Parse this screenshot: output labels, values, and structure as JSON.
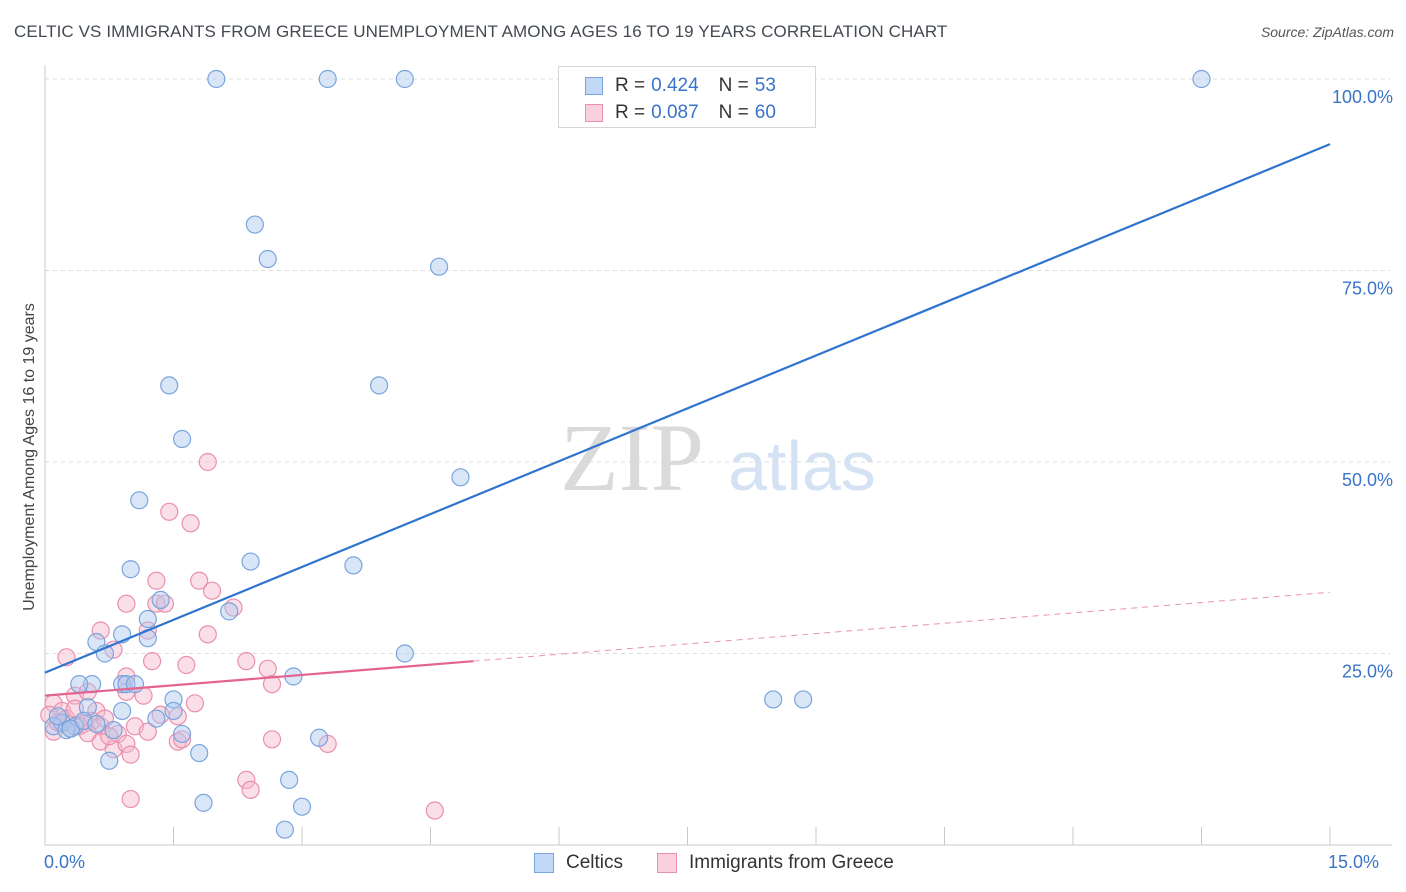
{
  "title": "CELTIC VS IMMIGRANTS FROM GREECE UNEMPLOYMENT AMONG AGES 16 TO 19 YEARS CORRELATION CHART",
  "source": "Source: ZipAtlas.com",
  "watermark": {
    "zip": "ZIP",
    "atlas": "atlas"
  },
  "legend": {
    "r_label": "R =",
    "n_label": "N =",
    "series": [
      {
        "name": "Celtics",
        "r": "0.424",
        "n": "53"
      },
      {
        "name": "Immigrants from Greece",
        "r": "0.087",
        "n": "60"
      }
    ]
  },
  "colors": {
    "celtic_fill": "#aac8f0",
    "celtic_stroke": "#7aa4dc",
    "celtic_line": "#2f74cf",
    "greece_fill": "#f7b8cc",
    "greece_stroke": "#ea8fae",
    "greece_line": "#e2648f",
    "tick_text": "#3a74c9",
    "grid": "#dcdcdc"
  },
  "chart_data": {
    "type": "scatter",
    "title": "CELTIC VS IMMIGRANTS FROM GREECE UNEMPLOYMENT AMONG AGES 16 TO 19 YEARS CORRELATION CHART",
    "xlabel": "",
    "ylabel": "Unemployment Among Ages 16 to 19 years",
    "xlim": [
      0,
      15
    ],
    "ylim": [
      0,
      105
    ],
    "x_tick_labels": [
      "0.0%",
      "15.0%"
    ],
    "y_ticks": [
      25,
      50,
      75,
      100
    ],
    "y_tick_labels": [
      "25.0%",
      "50.0%",
      "75.0%",
      "100.0%"
    ],
    "grid": true,
    "series": [
      {
        "name": "Celtics",
        "r": 0.424,
        "n": 53,
        "trend": {
          "x": [
            0,
            15
          ],
          "y": [
            22.5,
            91.5
          ],
          "style": "solid"
        },
        "points": [
          [
            2.0,
            100
          ],
          [
            3.3,
            100
          ],
          [
            4.2,
            100
          ],
          [
            13.5,
            100
          ],
          [
            2.45,
            81
          ],
          [
            2.6,
            76.5
          ],
          [
            4.6,
            75.5
          ],
          [
            1.45,
            60
          ],
          [
            3.9,
            60
          ],
          [
            1.6,
            53
          ],
          [
            4.85,
            48
          ],
          [
            1.1,
            45
          ],
          [
            2.4,
            37
          ],
          [
            3.6,
            36.5
          ],
          [
            1.0,
            36
          ],
          [
            1.35,
            32
          ],
          [
            2.15,
            30.5
          ],
          [
            1.2,
            29.5
          ],
          [
            1.2,
            27
          ],
          [
            0.9,
            27.5
          ],
          [
            0.6,
            26.5
          ],
          [
            0.7,
            25
          ],
          [
            4.2,
            25
          ],
          [
            2.9,
            22
          ],
          [
            0.9,
            21
          ],
          [
            0.55,
            21
          ],
          [
            0.4,
            21
          ],
          [
            0.95,
            21
          ],
          [
            1.05,
            21
          ],
          [
            1.5,
            19
          ],
          [
            1.5,
            17.5
          ],
          [
            0.5,
            18
          ],
          [
            0.2,
            16
          ],
          [
            0.35,
            15.5
          ],
          [
            0.1,
            15.5
          ],
          [
            0.25,
            15
          ],
          [
            0.8,
            15
          ],
          [
            1.6,
            14.5
          ],
          [
            0.3,
            15.2
          ],
          [
            0.9,
            17.5
          ],
          [
            1.8,
            12
          ],
          [
            3.2,
            14
          ],
          [
            0.75,
            11
          ],
          [
            2.85,
            8.5
          ],
          [
            1.85,
            5.5
          ],
          [
            3.0,
            5
          ],
          [
            2.8,
            2
          ],
          [
            8.5,
            19
          ],
          [
            8.85,
            19
          ],
          [
            1.3,
            16.5
          ],
          [
            0.45,
            16.2
          ],
          [
            0.15,
            16.8
          ],
          [
            0.6,
            15.8
          ]
        ]
      },
      {
        "name": "Immigrants from Greece",
        "r": 0.087,
        "n": 60,
        "trend": {
          "x": [
            0,
            5.0
          ],
          "y": [
            19.5,
            24
          ],
          "style": "solid"
        },
        "trend_extension": {
          "x": [
            5.0,
            15
          ],
          "y": [
            24,
            33
          ],
          "style": "dashed"
        },
        "points": [
          [
            1.9,
            50
          ],
          [
            1.45,
            43.5
          ],
          [
            1.7,
            42
          ],
          [
            1.3,
            34.5
          ],
          [
            1.8,
            34.5
          ],
          [
            1.95,
            33.2
          ],
          [
            0.95,
            31.5
          ],
          [
            1.3,
            31.5
          ],
          [
            1.4,
            31.5
          ],
          [
            2.2,
            31.0
          ],
          [
            1.2,
            28
          ],
          [
            0.65,
            28
          ],
          [
            1.9,
            27.5
          ],
          [
            0.8,
            25.5
          ],
          [
            0.25,
            24.5
          ],
          [
            1.25,
            24
          ],
          [
            2.35,
            24
          ],
          [
            1.65,
            23.5
          ],
          [
            2.6,
            23
          ],
          [
            0.95,
            22
          ],
          [
            2.65,
            21
          ],
          [
            0.95,
            20
          ],
          [
            1.15,
            19.5
          ],
          [
            0.35,
            19.5
          ],
          [
            0.5,
            20
          ],
          [
            0.1,
            18.5
          ],
          [
            0.2,
            17.5
          ],
          [
            0.6,
            17.5
          ],
          [
            1.75,
            18.5
          ],
          [
            1.35,
            17
          ],
          [
            0.25,
            16.5
          ],
          [
            0.55,
            16.2
          ],
          [
            1.55,
            16.8
          ],
          [
            0.45,
            15.8
          ],
          [
            0.3,
            15.2
          ],
          [
            0.1,
            14.8
          ],
          [
            0.65,
            15.5
          ],
          [
            1.05,
            15.5
          ],
          [
            1.2,
            14.8
          ],
          [
            0.85,
            14.5
          ],
          [
            1.55,
            13.5
          ],
          [
            1.6,
            13.8
          ],
          [
            0.65,
            13.5
          ],
          [
            0.8,
            12.5
          ],
          [
            0.95,
            13.2
          ],
          [
            1.0,
            11.8
          ],
          [
            3.3,
            13.2
          ],
          [
            2.65,
            13.8
          ],
          [
            2.35,
            8.5
          ],
          [
            2.4,
            7.2
          ],
          [
            1.0,
            6
          ],
          [
            4.55,
            4.5
          ],
          [
            0.4,
            15.5
          ],
          [
            0.15,
            16.0
          ],
          [
            0.5,
            14.6
          ],
          [
            0.7,
            16.5
          ],
          [
            0.05,
            17.0
          ],
          [
            0.35,
            17.8
          ],
          [
            0.75,
            14.2
          ],
          [
            0.2,
            15.9
          ]
        ]
      }
    ]
  }
}
